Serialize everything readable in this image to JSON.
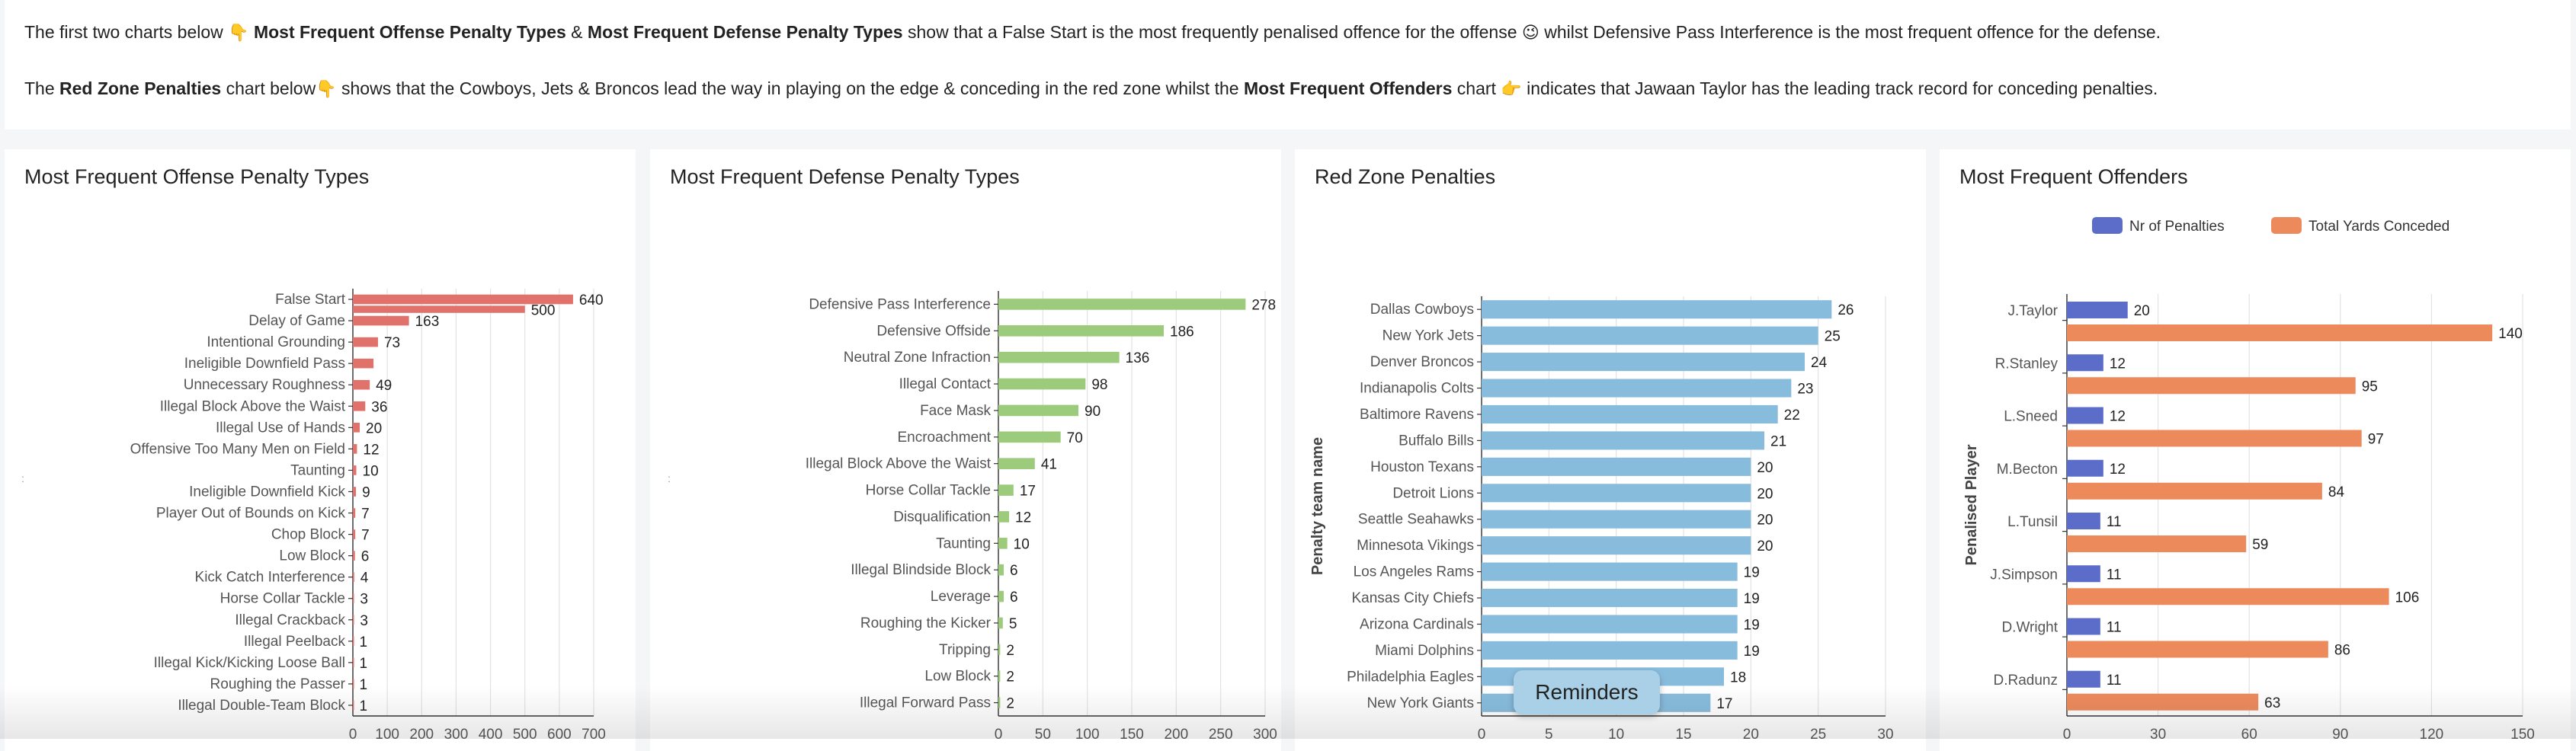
{
  "intro": {
    "p1": [
      {
        "t": "The first two charts below ",
        "b": false
      },
      {
        "t": "👇",
        "e": true
      },
      {
        "t": " Most Frequent Offense Penalty Types",
        "b": true
      },
      {
        "t": " & ",
        "b": false
      },
      {
        "t": "Most Frequent Defense Penalty Types",
        "b": true
      },
      {
        "t": " show that a False Start is the most frequently penalised offence for the offense ",
        "b": false
      },
      {
        "t": "😉",
        "e": true
      },
      {
        "t": " whilst Defensive Pass Interference is the most frequent offence for the defense.",
        "b": false
      }
    ],
    "p2": [
      {
        "t": "The ",
        "b": false
      },
      {
        "t": "Red Zone Penalties",
        "b": true
      },
      {
        "t": " chart below",
        "b": false
      },
      {
        "t": "👇",
        "e": true
      },
      {
        "t": " shows that the Cowboys, Jets & Broncos lead the way in playing on the edge & conceding in the red zone whilst the ",
        "b": false
      },
      {
        "t": "Most Frequent Offenders",
        "b": true
      },
      {
        "t": " chart ",
        "b": false
      },
      {
        "t": "👉",
        "e": true
      },
      {
        "t": " indicates that Jawaan Taylor has the leading track record for conceding penalties.",
        "b": false
      }
    ]
  },
  "toast": {
    "label": "Reminders"
  },
  "chart_data": [
    {
      "id": "offense",
      "type": "bar",
      "orientation": "horizontal",
      "title": "Most Frequent Offense Penalty Types",
      "color": "#e0716b",
      "categories": [
        "False Start",
        "Delay of Game",
        "Intentional Grounding",
        "Ineligible Downfield Pass",
        "Unnecessary Roughness",
        "Illegal Block Above the Waist",
        "Illegal Use of Hands",
        "Offensive Too Many Men on Field",
        "Taunting",
        "Ineligible Downfield Kick",
        "Player Out of Bounds on Kick",
        "Chop Block",
        "Low Block",
        "Kick Catch Interference",
        "Horse Collar Tackle",
        "Illegal Crackback",
        "Illegal Peelback",
        "Illegal Kick/Kicking Loose Ball",
        "Roughing the Passer",
        "Illegal Double-Team Block"
      ],
      "values": [
        640,
        163,
        73,
        60,
        49,
        36,
        20,
        12,
        10,
        9,
        7,
        7,
        6,
        4,
        3,
        3,
        1,
        1,
        1,
        1
      ],
      "labeled": [
        640,
        163,
        73,
        null,
        49,
        36,
        20,
        12,
        10,
        9,
        7,
        7,
        6,
        4,
        3,
        3,
        1,
        1,
        1,
        1
      ],
      "extra_label": {
        "after": "False Start",
        "value": 500,
        "bar_value": 500
      },
      "xlim": [
        0,
        700
      ],
      "xticks": [
        0,
        100,
        200,
        300,
        400,
        500,
        600,
        700
      ]
    },
    {
      "id": "defense",
      "type": "bar",
      "orientation": "horizontal",
      "title": "Most Frequent Defense Penalty Types",
      "color": "#9ccb7c",
      "categories": [
        "Defensive Pass Interference",
        "Defensive Offside",
        "Neutral Zone Infraction",
        "Illegal Contact",
        "Face Mask",
        "Encroachment",
        "Illegal Block Above the Waist",
        "Horse Collar Tackle",
        "Disqualification",
        "Taunting",
        "Illegal Blindside Block",
        "Leverage",
        "Roughing the Kicker",
        "Tripping",
        "Low Block",
        "Illegal Forward Pass"
      ],
      "values": [
        278,
        186,
        136,
        98,
        90,
        70,
        41,
        17,
        12,
        10,
        6,
        6,
        5,
        2,
        2,
        2
      ],
      "xlim": [
        0,
        300
      ],
      "xticks": [
        0,
        50,
        100,
        150,
        200,
        250,
        300
      ]
    },
    {
      "id": "redzone",
      "type": "bar",
      "orientation": "horizontal",
      "title": "Red Zone Penalties",
      "color": "#88bcdd",
      "ylabel": "Penalty team name",
      "categories": [
        "Dallas Cowboys",
        "New York Jets",
        "Denver Broncos",
        "Indianapolis Colts",
        "Baltimore Ravens",
        "Buffalo Bills",
        "Houston Texans",
        "Detroit Lions",
        "Seattle Seahawks",
        "Minnesota Vikings",
        "Los Angeles Rams",
        "Kansas City Chiefs",
        "Arizona Cardinals",
        "Miami Dolphins",
        "Philadelphia Eagles",
        "New York Giants"
      ],
      "values": [
        26,
        25,
        24,
        23,
        22,
        21,
        20,
        20,
        20,
        20,
        19,
        19,
        19,
        19,
        18,
        17
      ],
      "xlim": [
        0,
        30
      ],
      "xticks": [
        0,
        5,
        10,
        15,
        20,
        25,
        30
      ]
    },
    {
      "id": "offenders",
      "type": "bar",
      "orientation": "horizontal",
      "title": "Most Frequent Offenders",
      "ylabel": "Penalised Player",
      "legend_position": "top",
      "categories": [
        "J.Taylor",
        "R.Stanley",
        "L.Sneed",
        "M.Becton",
        "L.Tunsil",
        "J.Simpson",
        "D.Wright",
        "D.Radunz"
      ],
      "series": [
        {
          "name": "Nr of Penalties",
          "color": "#5b6cc9",
          "values": [
            20,
            12,
            12,
            12,
            11,
            11,
            11,
            11
          ]
        },
        {
          "name": "Total Yards Conceded",
          "color": "#ed8a5c",
          "values": [
            140,
            95,
            97,
            84,
            59,
            106,
            86,
            63
          ]
        }
      ],
      "xlim": [
        0,
        150
      ],
      "xticks": [
        0,
        30,
        60,
        90,
        120,
        150
      ]
    }
  ]
}
